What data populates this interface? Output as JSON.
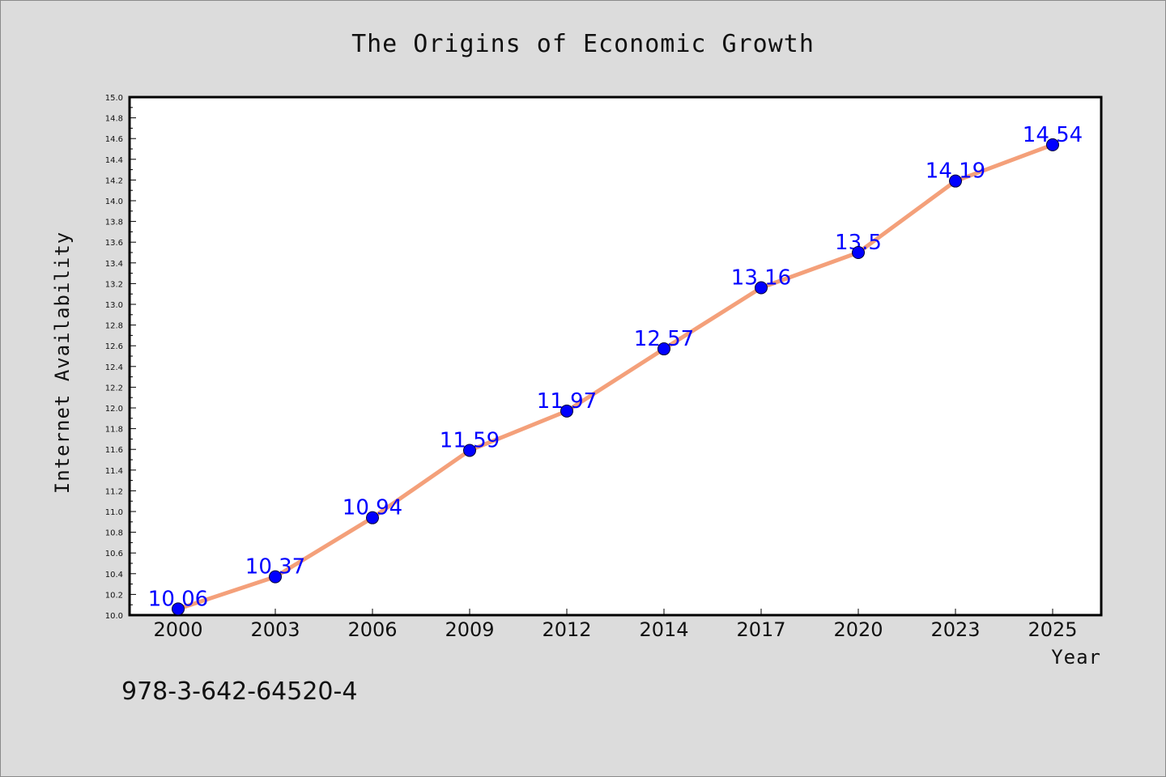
{
  "chart_data": {
    "type": "line",
    "title": "The Origins of Economic Growth",
    "xlabel": "Year",
    "ylabel": "Internet Availability",
    "categories": [
      "2000",
      "2003",
      "2006",
      "2009",
      "2012",
      "2014",
      "2017",
      "2020",
      "2023",
      "2025"
    ],
    "values": [
      10.06,
      10.37,
      10.94,
      11.59,
      11.97,
      12.57,
      13.16,
      13.5,
      14.19,
      14.54
    ],
    "data_labels": [
      "10.06",
      "10.37",
      "10.94",
      "11.59",
      "11.97",
      "12.57",
      "13.16",
      "13.5",
      "14.19",
      "14.54"
    ],
    "ylim": [
      10.0,
      15.0
    ],
    "yticks": [
      "10.0",
      "10.2",
      "10.4",
      "10.6",
      "10.8",
      "11.0",
      "11.2",
      "11.4",
      "11.6",
      "11.8",
      "12.0",
      "12.2",
      "12.4",
      "12.6",
      "12.8",
      "13.0",
      "13.2",
      "13.4",
      "13.6",
      "13.8",
      "14.0",
      "14.2",
      "14.4",
      "14.6",
      "14.8",
      "15.0"
    ],
    "grid": false,
    "line_color": "#f4a07a",
    "marker_color": "#0000ff",
    "label_color": "#0000ff"
  },
  "footer": {
    "isbn": "978-3-642-64520-4"
  }
}
